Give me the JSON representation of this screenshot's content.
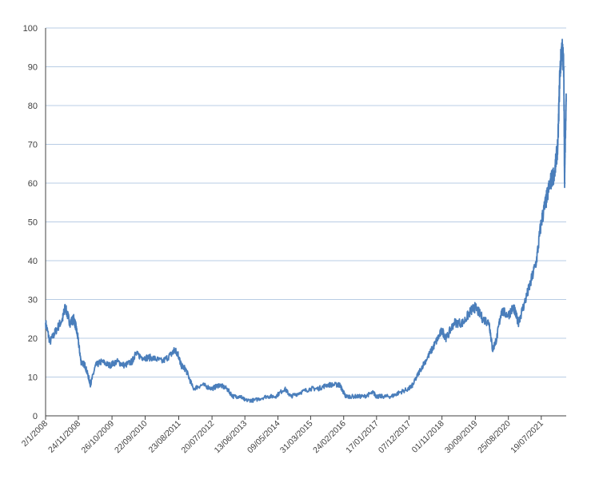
{
  "chart_data": {
    "type": "line",
    "title": "",
    "xlabel": "",
    "ylabel": "",
    "ylim": [
      0,
      100
    ],
    "y_ticks": [
      0,
      10,
      20,
      30,
      40,
      50,
      60,
      70,
      80,
      90,
      100
    ],
    "x_ticks": [
      "2/1/2008",
      "24/11/2008",
      "26/10/2009",
      "22/09/2010",
      "23/08/2011",
      "20/07/2012",
      "13/06/2013",
      "09/05/2014",
      "31/03/2015",
      "24/02/2016",
      "17/01/2017",
      "07/12/2017",
      "01/11/2018",
      "30/09/2019",
      "25/08/2020",
      "19/07/2021"
    ],
    "grid": "horizontal",
    "legend": "none",
    "colors": {
      "line": "#4a7ebb",
      "grid": "#b8cce4",
      "axis": "#404040",
      "text": "#404040"
    },
    "series": [
      {
        "x": [
          "2008-01-02",
          "2008-02-15",
          "2008-04-15",
          "2008-06-20",
          "2008-07-15",
          "2008-09-01",
          "2008-10-10",
          "2008-10-30",
          "2008-11-20",
          "2008-12-20",
          "2009-01-30",
          "2009-03-05",
          "2009-03-25",
          "2009-05-15",
          "2009-07-15",
          "2009-10-01",
          "2009-12-15",
          "2010-03-01",
          "2010-05-15",
          "2010-06-15",
          "2010-09-01",
          "2010-12-01",
          "2011-03-15",
          "2011-06-15",
          "2011-07-15",
          "2011-08-15",
          "2011-09-15",
          "2011-11-01",
          "2012-01-15",
          "2012-04-15",
          "2012-07-20",
          "2012-10-01",
          "2012-12-15",
          "2013-02-15",
          "2013-05-01",
          "2013-06-15",
          "2013-09-15",
          "2014-01-15",
          "2014-04-15",
          "2014-07-15",
          "2014-09-15",
          "2014-12-15",
          "2015-03-31",
          "2015-06-15",
          "2015-09-15",
          "2015-12-15",
          "2016-01-15",
          "2016-02-24",
          "2016-03-15",
          "2016-06-15",
          "2016-09-15",
          "2016-12-15",
          "2017-01-17",
          "2017-03-15",
          "2017-06-15",
          "2017-09-01",
          "2017-12-07",
          "2018-01-15",
          "2018-04-01",
          "2018-07-01",
          "2018-09-01",
          "2018-11-01",
          "2018-12-15",
          "2019-03-01",
          "2019-06-01",
          "2019-08-15",
          "2019-09-30",
          "2019-12-15",
          "2020-02-15",
          "2020-03-20",
          "2020-05-01",
          "2020-06-15",
          "2020-08-25",
          "2020-10-15",
          "2020-12-01",
          "2021-02-01",
          "2021-04-01",
          "2021-06-01",
          "2021-07-19",
          "2021-09-01",
          "2021-10-15",
          "2021-12-01",
          "2022-01-01",
          "2022-01-20",
          "2022-02-10",
          "2022-03-01",
          "2022-03-08",
          "2022-03-15",
          "2022-03-25"
        ],
        "y": [
          24,
          19,
          22,
          25,
          28,
          24,
          25,
          23,
          20,
          14,
          13,
          10,
          8,
          13,
          14,
          13,
          14,
          13,
          14,
          16,
          15,
          15,
          14,
          16,
          17,
          16,
          13,
          12,
          7,
          8,
          7,
          8,
          7,
          5,
          5,
          4,
          4,
          5,
          5,
          7,
          5,
          6,
          7,
          7,
          8,
          8,
          8,
          6,
          5,
          5,
          5,
          6,
          5,
          5,
          5,
          6,
          7,
          8,
          12,
          16,
          19,
          22,
          20,
          24,
          24,
          27,
          28,
          25,
          24,
          17,
          20,
          27,
          26,
          28,
          24,
          29,
          34,
          40,
          50,
          55,
          60,
          63,
          70,
          88,
          95,
          90,
          60,
          70,
          81
        ]
      }
    ]
  }
}
